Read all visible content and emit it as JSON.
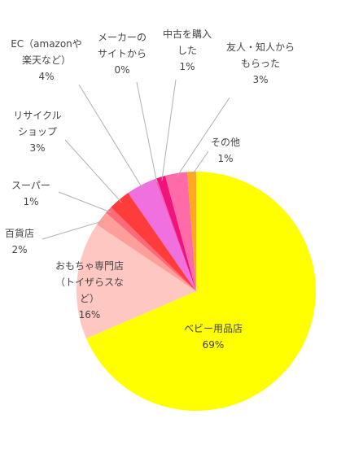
{
  "chart_data": {
    "type": "pie",
    "start_angle_deg": 0,
    "direction": "clockwise",
    "slices": [
      {
        "label_lines": [
          "ベビー用品店"
        ],
        "percent_label": "69%",
        "value": 69,
        "color": "#FFFF00"
      },
      {
        "label_lines": [
          "おもちゃ専門店",
          "（トイザらスな",
          "ど）"
        ],
        "percent_label": "16%",
        "value": 16,
        "color": "#FFC7C2"
      },
      {
        "label_lines": [
          "百貨店"
        ],
        "percent_label": "2%",
        "value": 2,
        "color": "#FF9E9A"
      },
      {
        "label_lines": [
          "スーパー"
        ],
        "percent_label": "1%",
        "value": 1,
        "color": "#FF6A7A"
      },
      {
        "label_lines": [
          "リサイクル",
          "ショップ"
        ],
        "percent_label": "3%",
        "value": 3,
        "color": "#FF3C3C"
      },
      {
        "label_lines": [
          "EC（amazonや",
          "楽天など）"
        ],
        "percent_label": "4%",
        "value": 4,
        "color": "#F070E0"
      },
      {
        "label_lines": [
          "メーカーの",
          "サイトから"
        ],
        "percent_label": "0%",
        "value": 0.3,
        "color": "#F060C0"
      },
      {
        "label_lines": [
          "中古を購入",
          "した"
        ],
        "percent_label": "1%",
        "value": 1.2,
        "color": "#F0147A"
      },
      {
        "label_lines": [
          "友人・知人から",
          "もらった"
        ],
        "percent_label": "3%",
        "value": 3,
        "color": "#FF6AA8"
      },
      {
        "label_lines": [
          "その他"
        ],
        "percent_label": "1%",
        "value": 1.2,
        "color": "#FFA820"
      }
    ]
  }
}
